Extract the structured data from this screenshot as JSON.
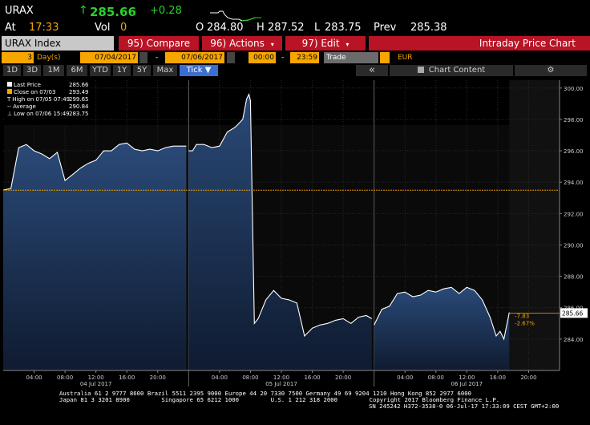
{
  "quote": {
    "ticker": "URAX",
    "last_arrow": "↑",
    "last": "285.66",
    "change": "+0.28",
    "at_label": "At",
    "time": "17:33",
    "vol_label": "Vol",
    "vol": "0",
    "open_label": "O",
    "open": "284.80",
    "high_label": "H",
    "high": "287.52",
    "low_label": "L",
    "low": "283.75",
    "prev_label": "Prev",
    "prev": "285.38"
  },
  "menu": {
    "security": "URAX Index",
    "compare": "95) Compare",
    "actions": "96) Actions",
    "edit": "97) Edit",
    "title": "Intraday Price Chart"
  },
  "controls": {
    "period_count": "3",
    "period_unit": "Day(s)",
    "start_date": "07/04/2017",
    "dash1": "-",
    "end_date": "07/06/2017",
    "start_time": "00:00",
    "dash2": "-",
    "end_time": "23:59",
    "market": "Trade",
    "currency": "EUR",
    "collapse": "«",
    "chart_content": "Chart Content",
    "settings": "⚙"
  },
  "periods": [
    "1D",
    "3D",
    "1M",
    "6M",
    "YTD",
    "1Y",
    "5Y",
    "Max"
  ],
  "tick_label": "Tick ▼",
  "legend": [
    {
      "label": "Last Price",
      "value": "285.66"
    },
    {
      "label": "Close on 07/03",
      "value": "293.49"
    },
    {
      "label": "High on 07/05 07:49",
      "value": "299.65"
    },
    {
      "label": "Average",
      "value": "290.84"
    },
    {
      "label": "Low on 07/06 15:49",
      "value": "283.75"
    }
  ],
  "colors": {
    "amber": "#f7a600",
    "red": "#b81425",
    "green": "#2bd02b",
    "area_fill": "#1e3456",
    "line": "#ffffff"
  },
  "chart_data": {
    "type": "area",
    "ylim": [
      282,
      300.5
    ],
    "y_ticks": [
      "300.00",
      "298.00",
      "296.00",
      "294.00",
      "292.00",
      "290.00",
      "288.00",
      "286.00",
      "284.00"
    ],
    "x_tick_labels": [
      "04:00",
      "08:00",
      "12:00",
      "16:00",
      "20:00",
      "04:00",
      "08:00",
      "12:00",
      "16:00",
      "20:00",
      "04:00",
      "08:00",
      "12:00",
      "16:00",
      "20:00"
    ],
    "day_labels": [
      "04 Jul 2017",
      "05 Jul 2017",
      "06 Jul 2017"
    ],
    "prev_close": 293.49,
    "last_price_label": "285.66",
    "change_abs": "-7.83",
    "change_pct": "-2.67%",
    "series": [
      {
        "day": "04 Jul 2017",
        "hours": [
          0,
          1,
          2,
          3,
          4,
          5,
          6,
          7,
          8,
          9,
          10,
          11,
          12,
          13,
          14,
          15,
          16,
          17,
          18,
          19,
          20,
          21,
          22,
          23.7
        ],
        "values": [
          293.5,
          293.6,
          296.2,
          296.4,
          296.0,
          295.8,
          295.5,
          295.9,
          294.1,
          294.5,
          294.9,
          295.2,
          295.4,
          296.0,
          296.0,
          296.4,
          296.5,
          296.1,
          296.0,
          296.1,
          296.0,
          296.2,
          296.3,
          296.3
        ]
      },
      {
        "day": "05 Jul 2017",
        "hours": [
          0,
          0.5,
          1,
          2,
          3,
          4,
          5,
          6,
          7,
          7.5,
          7.8,
          8,
          8.5,
          9,
          10,
          11,
          12,
          13,
          14,
          15,
          16,
          17,
          18,
          19,
          20,
          21,
          22,
          23,
          23.7
        ],
        "values": [
          296.0,
          296.0,
          296.4,
          296.4,
          296.2,
          296.3,
          297.2,
          297.5,
          298.0,
          299.3,
          299.6,
          299.2,
          285.0,
          285.3,
          286.5,
          287.1,
          286.6,
          286.5,
          286.3,
          284.2,
          284.7,
          284.9,
          285.0,
          285.2,
          285.3,
          285.0,
          285.4,
          285.5,
          285.3
        ]
      },
      {
        "day": "06 Jul 2017",
        "hours": [
          0,
          1,
          2,
          3,
          4,
          5,
          6,
          7,
          8,
          9,
          10,
          11,
          12,
          13,
          14,
          15,
          15.8,
          16.3,
          16.8,
          17.5
        ],
        "values": [
          284.9,
          285.9,
          286.1,
          286.9,
          287.0,
          286.7,
          286.8,
          287.1,
          287.0,
          287.2,
          287.3,
          286.9,
          287.3,
          287.1,
          286.5,
          285.4,
          284.2,
          284.5,
          284.0,
          285.7
        ]
      }
    ]
  },
  "footer": {
    "line1": "Australia 61 2 9777 8600 Brazil 5511 2395 9000 Europe 44 20 7330 7500 Germany 49 69 9204 1210 Hong Kong 852 2977 6000",
    "line2": "Japan 81 3 3201 8900         Singapore 65 6212 1000         U.S. 1 212 318 2000         Copyright 2017 Bloomberg Finance L.P.",
    "line3": "SN 245242 H372-3538-0 06-Jul-17 17:33:09 CEST GMT+2:00"
  }
}
